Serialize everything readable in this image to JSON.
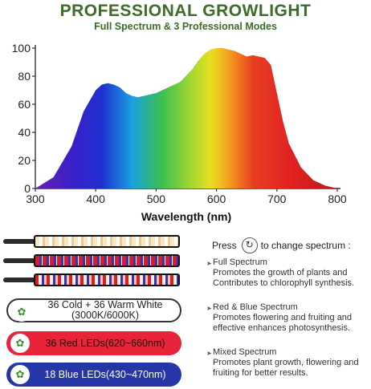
{
  "header": {
    "title": "PROFESSIONAL GROWLIGHT",
    "subtitle": "Full Spectrum & 3 Professional Modes"
  },
  "chart_data": {
    "type": "area",
    "title": "",
    "xlabel": "Wavelength (nm)",
    "ylabel": "",
    "xlim": [
      300,
      800
    ],
    "ylim": [
      0,
      100
    ],
    "xticks": [
      "300",
      "400",
      "500",
      "600",
      "700",
      "800"
    ],
    "yticks": [
      "0",
      "20",
      "40",
      "60",
      "80",
      "100"
    ],
    "grid": false,
    "colors": [
      "#6a1fb0",
      "#1e2fd0",
      "#1aa0e0",
      "#3cc050",
      "#e8e020",
      "#f5a020",
      "#e02020"
    ],
    "x": [
      300,
      330,
      360,
      380,
      400,
      410,
      420,
      430,
      440,
      450,
      460,
      470,
      480,
      500,
      520,
      540,
      560,
      570,
      580,
      590,
      600,
      610,
      620,
      630,
      640,
      650,
      660,
      670,
      680,
      690,
      700,
      710,
      720,
      740,
      760,
      780,
      800
    ],
    "values": [
      0,
      8,
      30,
      55,
      70,
      74,
      75,
      74,
      72,
      68,
      66,
      65,
      66,
      68,
      72,
      76,
      85,
      91,
      96,
      99,
      100,
      100,
      99,
      98,
      96,
      94,
      95,
      94,
      93,
      88,
      68,
      48,
      32,
      15,
      6,
      2,
      0
    ]
  },
  "strips": [
    {
      "kind": "white"
    },
    {
      "kind": "red-blue"
    },
    {
      "kind": "mixed"
    }
  ],
  "pills": {
    "white_line1": "36 Cold + 36 Warm White",
    "white_line2": "(3000K/6000K)",
    "red": "36 Red LEDs(620~660nm)",
    "blue": "18 Blue LEDs(430~470nm)"
  },
  "instructions": {
    "press": "Press",
    "action": "to change spectrum :"
  },
  "modes": [
    {
      "name": "Full Spectrum",
      "line1": "Promotes the growth of plants and",
      "line2": "Contributes to chlorophyll synthesis."
    },
    {
      "name": "Red & Blue Spectrum",
      "line1": "Promotes flowering and fruiting and",
      "line2": "effective enhances photosynthesis."
    },
    {
      "name": "Mixed Spectrum",
      "line1": "Promotes plant growth, flowering and",
      "line2": "fruiting for better results."
    }
  ]
}
